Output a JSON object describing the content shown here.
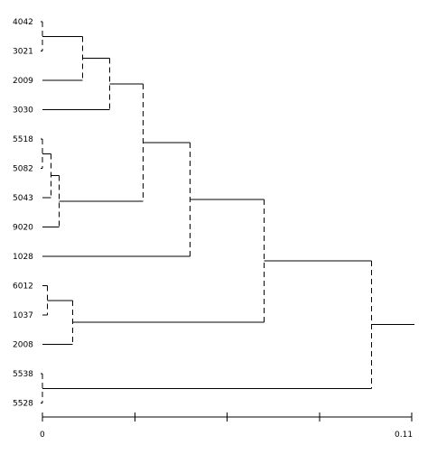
{
  "dendrogram": {
    "leaves": [
      "4042",
      "3021",
      "2009",
      "3030",
      "5518",
      "5082",
      "5043",
      "9020",
      "1028",
      "6012",
      "1037",
      "2008",
      "5538",
      "5528"
    ],
    "merges": [
      {
        "id": "m1",
        "children": [
          "L0",
          "L1"
        ],
        "height": 0.0
      },
      {
        "id": "m2",
        "children": [
          "m1",
          "L2"
        ],
        "height": 0.012
      },
      {
        "id": "m3",
        "children": [
          "m2",
          "L3"
        ],
        "height": 0.02
      },
      {
        "id": "m4",
        "children": [
          "L4",
          "L5"
        ],
        "height": 0.0
      },
      {
        "id": "m5",
        "children": [
          "m4",
          "L6"
        ],
        "height": 0.0025
      },
      {
        "id": "m6",
        "children": [
          "m5",
          "L7"
        ],
        "height": 0.005
      },
      {
        "id": "m7",
        "children": [
          "m3",
          "m6"
        ],
        "height": 0.03
      },
      {
        "id": "m8",
        "children": [
          "m7",
          "L8"
        ],
        "height": 0.044
      },
      {
        "id": "m9",
        "children": [
          "L9",
          "L10"
        ],
        "height": 0.0015
      },
      {
        "id": "m10",
        "children": [
          "m9",
          "L11"
        ],
        "height": 0.009
      },
      {
        "id": "m11",
        "children": [
          "m8",
          "m10"
        ],
        "height": 0.066
      },
      {
        "id": "m12",
        "children": [
          "L12",
          "L13"
        ],
        "height": 0.0
      },
      {
        "id": "m13",
        "children": [
          "m11",
          "m12"
        ],
        "height": 0.098
      }
    ],
    "axis": {
      "min": 0,
      "max": 0.11,
      "min_label": "0",
      "max_label": "0.11",
      "ticks": [
        0,
        0.0275,
        0.055,
        0.0825,
        0.11
      ]
    }
  }
}
